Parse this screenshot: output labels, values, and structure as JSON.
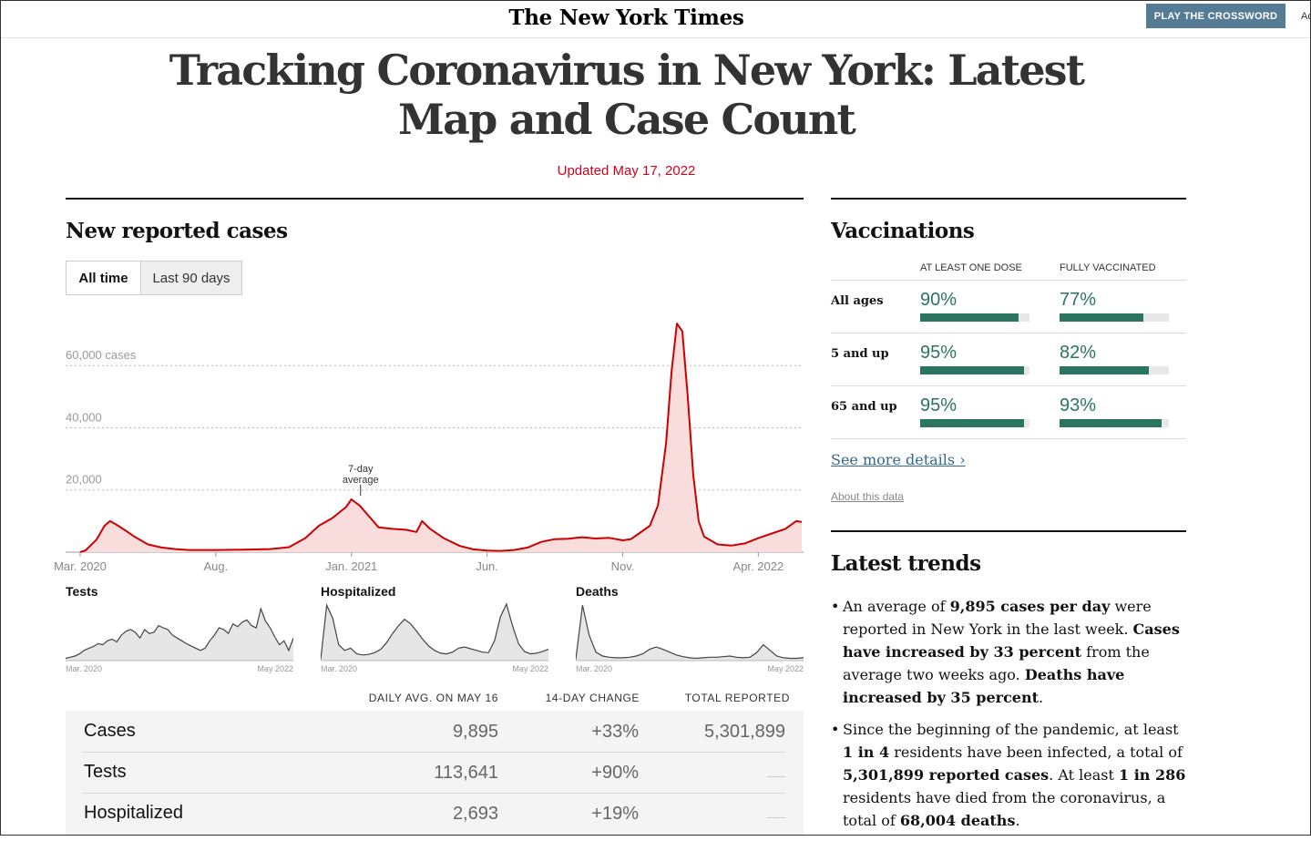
{
  "masthead": {
    "logo": "The New York Times",
    "crossword_button": "PLAY THE CROSSWORD",
    "cut_text": "Ac"
  },
  "article": {
    "headline": "Tracking Coronavirus in New York: Latest Map and Case Count",
    "updated": "Updated May 17, 2022"
  },
  "cases_section": {
    "title": "New reported cases",
    "tabs": [
      "All time",
      "Last 90 days"
    ],
    "active_tab": "All time"
  },
  "colors": {
    "cases_line": "#cc0000",
    "cases_fill": "#f9dcdc",
    "vaccine_green": "#2a7560",
    "updated_red": "#d0021b"
  },
  "chart_data": [
    {
      "type": "area",
      "title": "New reported cases",
      "series_name": "7-day average",
      "y_tick_labels": [
        "60,000 cases",
        "40,000",
        "20,000"
      ],
      "y_ticks": [
        60000,
        40000,
        20000
      ],
      "ylim": [
        0,
        75000
      ],
      "x_tick_labels": [
        "Mar. 2020",
        "Aug.",
        "Jan. 2021",
        "Jun.",
        "Nov.",
        "Apr. 2022"
      ],
      "x_tick_index": [
        0,
        5,
        10,
        15,
        20,
        25
      ],
      "annotation": {
        "text": [
          "7-day",
          "average"
        ],
        "at_index": 10
      },
      "x": [
        "2020-03",
        "2020-04",
        "2020-05",
        "2020-06",
        "2020-07",
        "2020-08",
        "2020-09",
        "2020-10",
        "2020-11",
        "2020-12",
        "2021-01",
        "2021-02",
        "2021-03",
        "2021-04",
        "2021-05",
        "2021-06",
        "2021-07",
        "2021-08",
        "2021-09",
        "2021-10",
        "2021-11",
        "2021-12",
        "2022-01",
        "2022-02",
        "2022-03",
        "2022-04",
        "2022-05"
      ],
      "points": [
        [
          0.0,
          0
        ],
        [
          0.2,
          600
        ],
        [
          0.6,
          4000
        ],
        [
          0.9,
          8500
        ],
        [
          1.1,
          10000
        ],
        [
          1.4,
          8500
        ],
        [
          1.7,
          6800
        ],
        [
          2.0,
          5000
        ],
        [
          2.5,
          2500
        ],
        [
          3.0,
          1500
        ],
        [
          3.5,
          1000
        ],
        [
          4.0,
          700
        ],
        [
          5.0,
          700
        ],
        [
          6.0,
          800
        ],
        [
          7.0,
          1000
        ],
        [
          7.7,
          1600
        ],
        [
          8.3,
          4500
        ],
        [
          8.8,
          8500
        ],
        [
          9.3,
          11000
        ],
        [
          9.8,
          14500
        ],
        [
          10.0,
          17000
        ],
        [
          10.3,
          15000
        ],
        [
          10.6,
          12000
        ],
        [
          11.0,
          8000
        ],
        [
          11.5,
          7500
        ],
        [
          12.0,
          7200
        ],
        [
          12.4,
          6500
        ],
        [
          12.6,
          10000
        ],
        [
          12.9,
          7500
        ],
        [
          13.4,
          4500
        ],
        [
          14.0,
          2000
        ],
        [
          14.5,
          900
        ],
        [
          15.0,
          500
        ],
        [
          15.5,
          400
        ],
        [
          16.0,
          700
        ],
        [
          16.5,
          1500
        ],
        [
          17.0,
          3300
        ],
        [
          17.5,
          4200
        ],
        [
          18.0,
          4300
        ],
        [
          18.5,
          4800
        ],
        [
          19.0,
          4400
        ],
        [
          19.5,
          4600
        ],
        [
          20.0,
          3800
        ],
        [
          20.3,
          4200
        ],
        [
          20.6,
          6000
        ],
        [
          21.0,
          8500
        ],
        [
          21.3,
          15000
        ],
        [
          21.6,
          35000
        ],
        [
          21.8,
          58000
        ],
        [
          22.0,
          73500
        ],
        [
          22.2,
          71000
        ],
        [
          22.4,
          50000
        ],
        [
          22.6,
          25000
        ],
        [
          22.8,
          10000
        ],
        [
          23.0,
          5000
        ],
        [
          23.5,
          2500
        ],
        [
          24.0,
          2100
        ],
        [
          24.5,
          2800
        ],
        [
          25.0,
          4500
        ],
        [
          25.5,
          6000
        ],
        [
          26.0,
          7500
        ],
        [
          26.4,
          10000
        ],
        [
          26.6,
          9700
        ]
      ]
    },
    {
      "type": "area",
      "title": "Tests",
      "x_tick_labels": [
        "Mar. 2020",
        "May 2022"
      ],
      "values": [
        0.04,
        0.06,
        0.08,
        0.12,
        0.18,
        0.22,
        0.25,
        0.3,
        0.28,
        0.35,
        0.38,
        0.33,
        0.45,
        0.52,
        0.55,
        0.5,
        0.4,
        0.55,
        0.48,
        0.5,
        0.62,
        0.58,
        0.55,
        0.45,
        0.4,
        0.35,
        0.3,
        0.26,
        0.22,
        0.18,
        0.22,
        0.35,
        0.45,
        0.58,
        0.55,
        0.48,
        0.65,
        0.6,
        0.68,
        0.72,
        0.62,
        0.58,
        0.92,
        0.7,
        0.58,
        0.42,
        0.28,
        0.35,
        0.18,
        0.4
      ]
    },
    {
      "type": "area",
      "title": "Hospitalized",
      "x_tick_labels": [
        "Mar. 2020",
        "May 2022"
      ],
      "values": [
        0.02,
        0.98,
        0.75,
        0.28,
        0.18,
        0.22,
        0.12,
        0.1,
        0.11,
        0.14,
        0.2,
        0.32,
        0.48,
        0.62,
        0.73,
        0.65,
        0.52,
        0.38,
        0.26,
        0.18,
        0.13,
        0.12,
        0.15,
        0.22,
        0.24,
        0.21,
        0.18,
        0.15,
        0.14,
        0.35,
        0.78,
        1.0,
        0.62,
        0.3,
        0.16,
        0.12,
        0.13,
        0.16,
        0.2
      ]
    },
    {
      "type": "area",
      "title": "Deaths",
      "x_tick_labels": [
        "Mar. 2020",
        "May 2022"
      ],
      "values": [
        0.02,
        0.98,
        0.45,
        0.15,
        0.08,
        0.06,
        0.05,
        0.05,
        0.06,
        0.08,
        0.12,
        0.2,
        0.24,
        0.2,
        0.15,
        0.1,
        0.07,
        0.05,
        0.04,
        0.05,
        0.06,
        0.06,
        0.07,
        0.08,
        0.06,
        0.05,
        0.06,
        0.14,
        0.28,
        0.18,
        0.08,
        0.05,
        0.04,
        0.04,
        0.05
      ]
    }
  ],
  "summary_table": {
    "headers": [
      "DAILY AVG. ON MAY 16",
      "14-DAY CHANGE",
      "TOTAL REPORTED"
    ],
    "rows": [
      {
        "label": "Cases",
        "daily_avg": "9,895",
        "change": "+33%",
        "total": "5,301,899"
      },
      {
        "label": "Tests",
        "daily_avg": "113,641",
        "change": "+90%",
        "total": ""
      },
      {
        "label": "Hospitalized",
        "daily_avg": "2,693",
        "change": "+19%",
        "total": ""
      }
    ]
  },
  "vaccinations": {
    "title": "Vaccinations",
    "col_headers": [
      "AT LEAST ONE DOSE",
      "FULLY VACCINATED"
    ],
    "rows": [
      {
        "label": "All ages",
        "one_dose": "90%",
        "one_dose_value": 0.9,
        "fully": "77%",
        "fully_value": 0.77
      },
      {
        "label": "5 and up",
        "one_dose": "95%",
        "one_dose_value": 0.95,
        "fully": "82%",
        "fully_value": 0.82
      },
      {
        "label": "65 and up",
        "one_dose": "95%",
        "one_dose_value": 0.95,
        "fully": "93%",
        "fully_value": 0.93
      }
    ],
    "see_more": "See more details ›",
    "about": "About this data"
  },
  "trends": {
    "title": "Latest trends",
    "items": [
      [
        {
          "t": "An average of "
        },
        {
          "t": "9,895 cases per day",
          "b": true
        },
        {
          "t": " were reported in New York in the last week. "
        },
        {
          "t": "Cases have increased by 33 percent",
          "b": true
        },
        {
          "t": " from the average two weeks ago. "
        },
        {
          "t": "Deaths have increased by 35 percent",
          "b": true
        },
        {
          "t": "."
        }
      ],
      [
        {
          "t": "Since the beginning of the pandemic, at least "
        },
        {
          "t": "1 in 4",
          "b": true
        },
        {
          "t": " residents have been infected, a total of "
        },
        {
          "t": "5,301,899 reported cases",
          "b": true
        },
        {
          "t": ". At least "
        },
        {
          "t": "1 in 286",
          "b": true
        },
        {
          "t": " residents have died from the coronavirus, a total of "
        },
        {
          "t": "68,004 deaths",
          "b": true
        },
        {
          "t": "."
        }
      ]
    ]
  }
}
